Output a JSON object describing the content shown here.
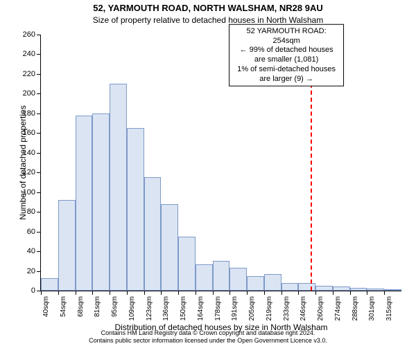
{
  "chart": {
    "type": "histogram",
    "title_main": "52, YARMOUTH ROAD, NORTH WALSHAM, NR28 9AU",
    "title_sub": "Size of property relative to detached houses in North Walsham",
    "title_main_fontsize": 13,
    "title_sub_fontsize": 12,
    "yaxis": {
      "label": "Number of detached properties",
      "label_fontsize": 12,
      "min": 0,
      "max": 260,
      "tick_step": 20
    },
    "xaxis": {
      "label": "Distribution of detached houses by size in North Walsham",
      "label_fontsize": 12,
      "tick_labels": [
        "40sqm",
        "54sqm",
        "68sqm",
        "81sqm",
        "95sqm",
        "109sqm",
        "123sqm",
        "136sqm",
        "150sqm",
        "164sqm",
        "178sqm",
        "191sqm",
        "205sqm",
        "219sqm",
        "233sqm",
        "246sqm",
        "260sqm",
        "274sqm",
        "288sqm",
        "301sqm",
        "315sqm"
      ],
      "tick_fontsize": 10
    },
    "bars": {
      "values": [
        13,
        92,
        178,
        180,
        210,
        165,
        115,
        88,
        55,
        27,
        30,
        23,
        15,
        17,
        8,
        8,
        5,
        4,
        3,
        2,
        1
      ],
      "fill_color": "#dbe4f3",
      "border_color": "#7d99c8",
      "width_ratio": 1.0
    },
    "reference_line": {
      "x_index": 15.7,
      "color": "#ff0000",
      "dash": "4,3"
    },
    "annotation": {
      "lines": [
        "52 YARMOUTH ROAD: 254sqm",
        "← 99% of detached houses are smaller (1,081)",
        "1% of semi-detached houses are larger (9) →"
      ],
      "fontsize": 11,
      "x_center_idx": 14.3,
      "y_value": 239
    },
    "background_color": "#ffffff",
    "axis_color": "#000000"
  },
  "footer": {
    "line1": "Contains HM Land Registry data © Crown copyright and database right 2024.",
    "line2": "Contains public sector information licensed under the Open Government Licence v3.0.",
    "fontsize": 9,
    "color": "#000000"
  }
}
